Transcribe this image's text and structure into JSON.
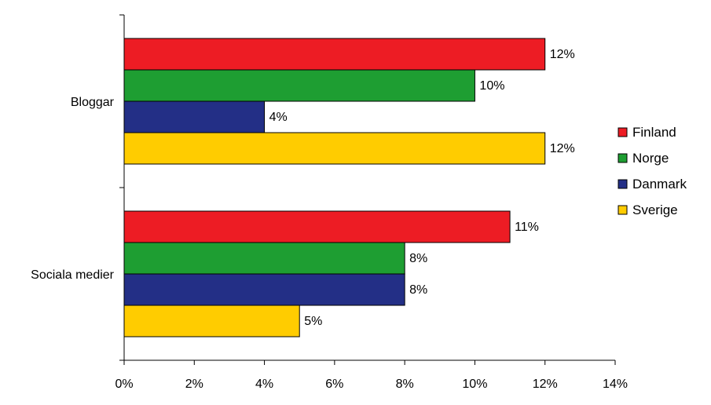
{
  "chart_data": {
    "type": "bar",
    "orientation": "horizontal",
    "categories": [
      "Bloggar",
      "Sociala medier"
    ],
    "series": [
      {
        "name": "Finland",
        "color": "#ED1C24",
        "values": [
          12,
          11
        ]
      },
      {
        "name": "Norge",
        "color": "#1E9E32",
        "values": [
          10,
          8
        ]
      },
      {
        "name": "Danmark",
        "color": "#232F86",
        "values": [
          4,
          8
        ]
      },
      {
        "name": "Sverige",
        "color": "#FFCC00",
        "values": [
          12,
          5
        ]
      }
    ],
    "value_labels": [
      [
        "12%",
        "11%"
      ],
      [
        "10%",
        "8%"
      ],
      [
        "4%",
        "8%"
      ],
      [
        "12%",
        "5%"
      ]
    ],
    "xlim": [
      0,
      14
    ],
    "x_ticks": [
      "0%",
      "2%",
      "4%",
      "6%",
      "8%",
      "10%",
      "12%",
      "14%"
    ],
    "grid": false,
    "legend_position": "right",
    "title": "",
    "xlabel": "",
    "ylabel": ""
  }
}
